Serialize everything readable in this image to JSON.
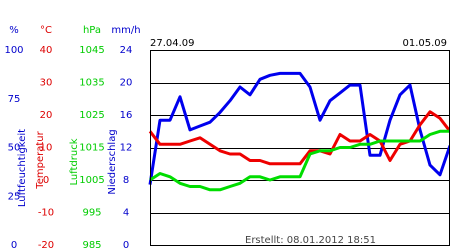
{
  "chart_data": {
    "type": "line",
    "start_label": "27.04.09",
    "end_label": "01.05.09",
    "footer": "Erstellt: 08.01.2012 18:51",
    "grid": true,
    "axes": [
      {
        "unit": "%",
        "label": "Luftfeuchtigkeit",
        "color": "#0000cc",
        "lim": [
          0,
          100
        ],
        "ticks": [
          100,
          75,
          50,
          25,
          0
        ]
      },
      {
        "unit": "°C",
        "label": "Temperatur",
        "color": "#dd0000",
        "lim": [
          -20,
          40
        ],
        "ticks": [
          40,
          30,
          20,
          10,
          0,
          -10,
          -20
        ]
      },
      {
        "unit": "hPa",
        "label": "Luftdruck",
        "color": "#00cc00",
        "lim": [
          985,
          1045
        ],
        "ticks": [
          1045,
          1035,
          1025,
          1015,
          1005,
          995,
          985
        ]
      },
      {
        "unit": "mm/h",
        "label": "Niederschlag",
        "color": "#0000cc",
        "lim": [
          0,
          24
        ],
        "ticks": [
          24,
          20,
          16,
          12,
          8,
          4,
          0
        ]
      }
    ],
    "series": [
      {
        "axis": 0,
        "color": "#0000ee",
        "values": [
          31,
          64,
          64,
          76,
          59,
          61,
          63,
          68,
          74,
          81,
          77,
          85,
          87,
          88,
          88,
          88,
          81,
          64,
          74,
          78,
          82,
          82,
          46,
          46,
          64,
          77,
          82,
          59,
          41,
          36,
          51
        ]
      },
      {
        "axis": 1,
        "color": "#ee0000",
        "values": [
          15,
          11,
          11,
          11,
          12,
          13,
          11,
          9,
          8,
          8,
          6,
          6,
          5,
          5,
          5,
          5,
          9,
          9,
          8,
          14,
          12,
          12,
          14,
          12,
          6,
          11,
          12,
          17,
          21,
          19,
          15
        ]
      },
      {
        "axis": 2,
        "color": "#00dd00",
        "values": [
          1005,
          1007,
          1006,
          1004,
          1003,
          1003,
          1002,
          1002,
          1003,
          1004,
          1006,
          1006,
          1005,
          1006,
          1006,
          1006,
          1013,
          1014,
          1014,
          1015,
          1015,
          1016,
          1016,
          1017,
          1017,
          1017,
          1017,
          1017,
          1019,
          1020,
          1020
        ]
      }
    ]
  }
}
